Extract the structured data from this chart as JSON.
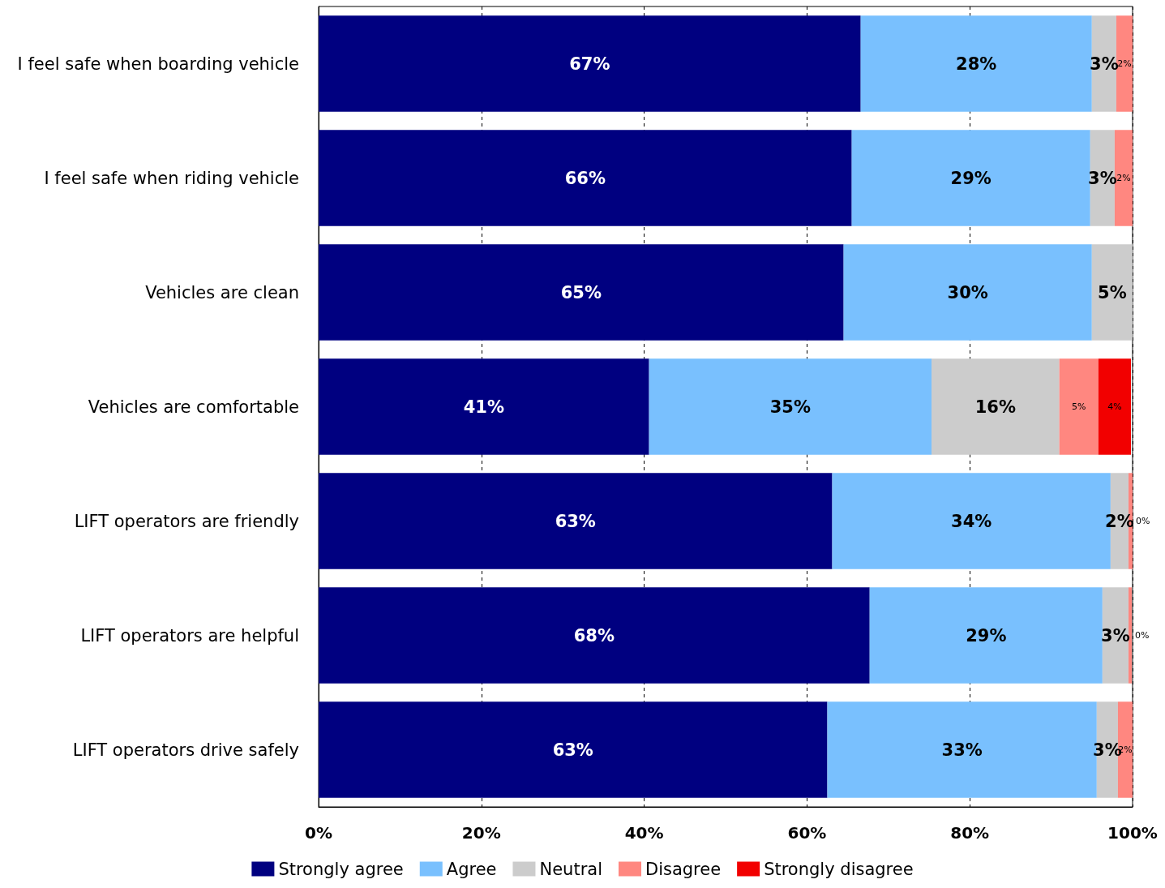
{
  "chart_data": {
    "type": "bar",
    "orientation": "horizontal",
    "stacked": true,
    "categories": [
      "I feel safe when boarding vehicle",
      "I feel safe when riding vehicle",
      "Vehicles are clean",
      "Vehicles are comfortable",
      "LIFT operators are friendly",
      "LIFT operators are helpful",
      "LIFT operators drive safely"
    ],
    "series": [
      {
        "name": "Strongly agree",
        "color": "#000080",
        "values": [
          66.6,
          65.5,
          64.5,
          40.6,
          63.1,
          67.7,
          62.5
        ],
        "value_labels": [
          "67%",
          "66%",
          "65%",
          "41%",
          "63%",
          "68%",
          "63%"
        ]
      },
      {
        "name": "Agree",
        "color": "#79c0fe",
        "values": [
          28.4,
          29.3,
          30.5,
          34.7,
          34.2,
          28.6,
          33.1
        ],
        "value_labels": [
          "28%",
          "29%",
          "30%",
          "35%",
          "34%",
          "29%",
          "33%"
        ]
      },
      {
        "name": "Neutral",
        "color": "#cccccc",
        "values": [
          3.0,
          3.0,
          5.0,
          15.7,
          2.2,
          3.2,
          2.6
        ],
        "value_labels": [
          "3%",
          "3%",
          "5%",
          "16%",
          "2%",
          "3%",
          "3%"
        ]
      },
      {
        "name": "Disagree",
        "color": "#ff8780",
        "values": [
          2.0,
          2.3,
          null,
          4.8,
          0.5,
          0.4,
          2.0
        ],
        "value_labels": [
          "2%",
          "2%",
          null,
          "5%",
          "0%",
          "0%",
          "2%"
        ]
      },
      {
        "name": "Strongly disagree",
        "color": "#f20000",
        "values": [
          null,
          null,
          null,
          4.0,
          null,
          null,
          null
        ],
        "value_labels": [
          null,
          null,
          null,
          "4%",
          null,
          null,
          null
        ]
      }
    ],
    "xlim": [
      0,
      100
    ],
    "xticks": [
      {
        "value": 0,
        "label": "0%"
      },
      {
        "value": 20,
        "label": "20%"
      },
      {
        "value": 40,
        "label": "40%"
      },
      {
        "value": 60,
        "label": "60%"
      },
      {
        "value": 80,
        "label": "80%"
      },
      {
        "value": 100,
        "label": "100%"
      }
    ],
    "grid": "x",
    "legend": "bottom"
  }
}
